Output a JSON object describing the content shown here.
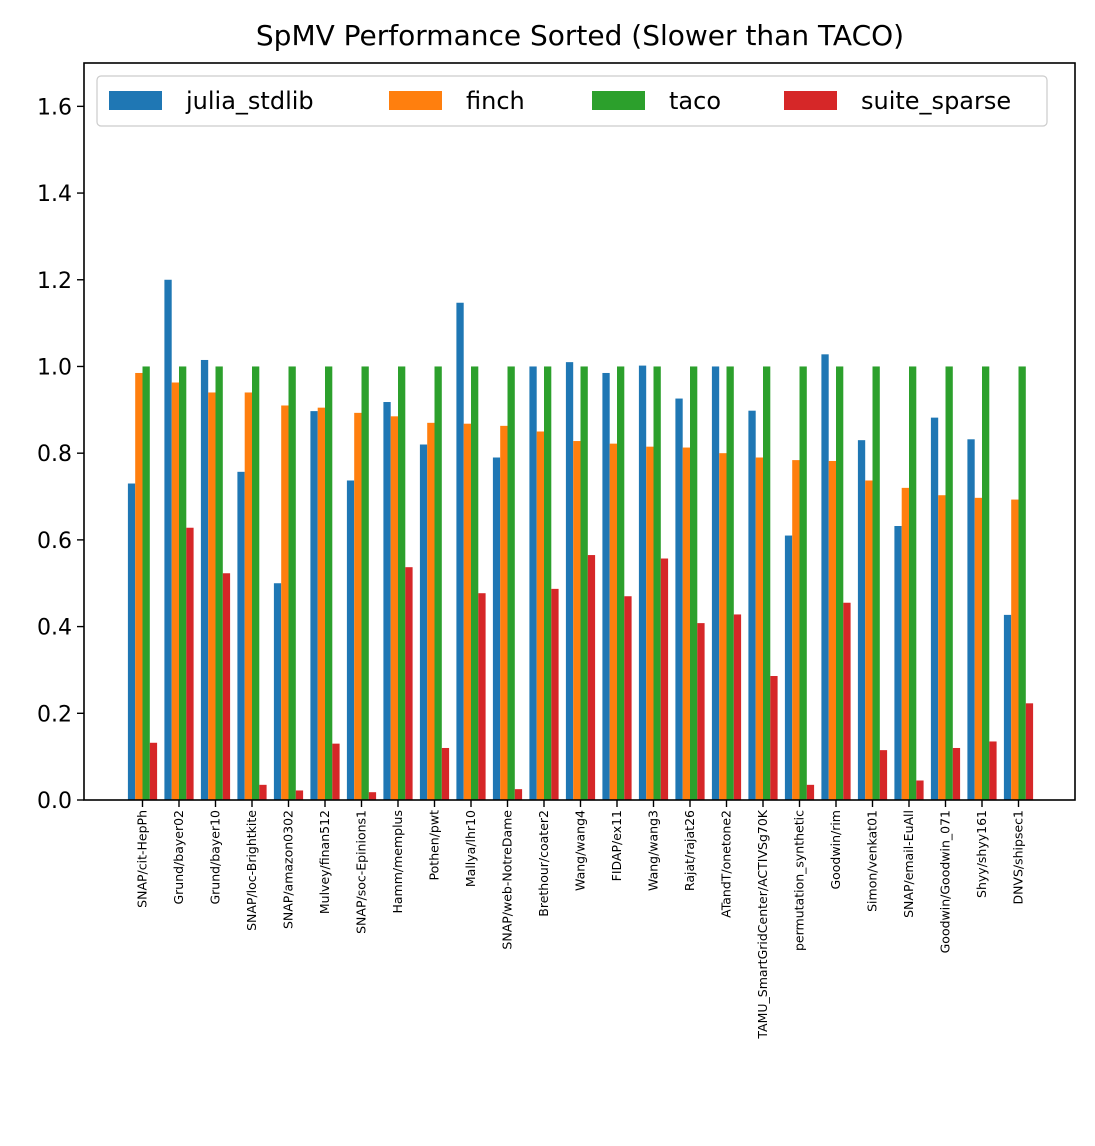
{
  "chart_data": {
    "type": "bar",
    "title": "SpMV Performance Sorted (Slower than TACO)",
    "xlabel": "",
    "ylabel": "",
    "ylim": [
      0,
      1.7
    ],
    "yticks": [
      "0.0",
      "0.2",
      "0.4",
      "0.6",
      "0.8",
      "1.0",
      "1.2",
      "1.4",
      "1.6"
    ],
    "ytick_values": [
      0,
      0.2,
      0.4,
      0.6,
      0.8,
      1.0,
      1.2,
      1.4,
      1.6
    ],
    "grid": false,
    "legend_position": "top",
    "categories": [
      "SNAP/cit-HepPh",
      "Grund/bayer02",
      "Grund/bayer10",
      "SNAP/loc-Brightkite",
      "SNAP/amazon0302",
      "Mulvey/finan512",
      "SNAP/soc-Epinions1",
      "Hamm/memplus",
      "Pothen/pwt",
      "Mallya/lhr10",
      "SNAP/web-NotreDame",
      "Brethour/coater2",
      "Wang/wang4",
      "FIDAP/ex11",
      "Wang/wang3",
      "Rajat/rajat26",
      "ATandT/onetone2",
      "TAMU_SmartGridCenter/ACTIVSg70K",
      "permutation_synthetic",
      "Goodwin/rim",
      "Simon/venkat01",
      "SNAP/email-EuAll",
      "Goodwin/Goodwin_071",
      "Shyy/shyy161",
      "DNVS/shipsec1"
    ],
    "series": [
      {
        "name": "julia_stdlib",
        "color": "#1f77b4",
        "values": [
          0.73,
          1.2,
          1.015,
          0.757,
          0.5,
          0.897,
          0.737,
          0.918,
          0.82,
          1.147,
          0.79,
          1.0,
          1.01,
          0.985,
          1.002,
          0.926,
          1.0,
          0.898,
          0.61,
          1.028,
          0.83,
          0.632,
          0.882,
          0.832,
          0.427
        ]
      },
      {
        "name": "finch",
        "color": "#ff7f0e",
        "values": [
          0.985,
          0.963,
          0.94,
          0.94,
          0.91,
          0.905,
          0.893,
          0.885,
          0.87,
          0.868,
          0.863,
          0.85,
          0.828,
          0.822,
          0.815,
          0.813,
          0.8,
          0.79,
          0.784,
          0.782,
          0.737,
          0.72,
          0.703,
          0.697,
          0.693
        ]
      },
      {
        "name": "taco",
        "color": "#2ca02c",
        "values": [
          1.0,
          1.0,
          1.0,
          1.0,
          1.0,
          1.0,
          1.0,
          1.0,
          1.0,
          1.0,
          1.0,
          1.0,
          1.0,
          1.0,
          1.0,
          1.0,
          1.0,
          1.0,
          1.0,
          1.0,
          1.0,
          1.0,
          1.0,
          1.0,
          1.0
        ]
      },
      {
        "name": "suite_sparse",
        "color": "#d62728",
        "values": [
          0.132,
          0.628,
          0.523,
          0.035,
          0.022,
          0.13,
          0.018,
          0.537,
          0.12,
          0.477,
          0.025,
          0.487,
          0.565,
          0.47,
          0.557,
          0.408,
          0.428,
          0.286,
          0.035,
          0.455,
          0.115,
          0.045,
          0.12,
          0.135,
          0.223
        ]
      }
    ]
  }
}
